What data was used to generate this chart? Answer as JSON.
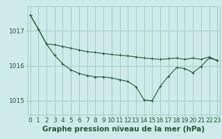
{
  "title": "Graphe pression niveau de la mer (hPa)",
  "bg_color": "#ceeaea",
  "grid_color": "#9fcfbf",
  "line_color": "#1a5c28",
  "hours": [
    0,
    1,
    2,
    3,
    4,
    5,
    6,
    7,
    8,
    9,
    10,
    11,
    12,
    13,
    14,
    15,
    16,
    17,
    18,
    19,
    20,
    21,
    22,
    23
  ],
  "series1": [
    1017.45,
    1017.05,
    1016.62,
    1016.6,
    1016.55,
    1016.5,
    1016.45,
    1016.4,
    1016.38,
    1016.35,
    1016.32,
    1016.3,
    1016.28,
    1016.25,
    1016.22,
    1016.2,
    1016.18,
    1016.2,
    1016.22,
    1016.18,
    1016.22,
    1016.18,
    1016.25,
    1016.15
  ],
  "series2": [
    1017.45,
    1017.05,
    1016.62,
    1016.3,
    1016.05,
    1015.88,
    1015.78,
    1015.72,
    1015.68,
    1015.68,
    1015.65,
    1015.6,
    1015.55,
    1015.4,
    1015.02,
    1015.0,
    1015.42,
    1015.7,
    1015.95,
    1015.92,
    1015.8,
    1015.98,
    1016.22,
    1016.15
  ],
  "ylim_min": 1014.6,
  "ylim_max": 1017.7,
  "yticks": [
    1015,
    1016,
    1017
  ],
  "tick_fontsize": 6.5,
  "title_fontsize": 7.5,
  "title_color": "#1a5c28"
}
